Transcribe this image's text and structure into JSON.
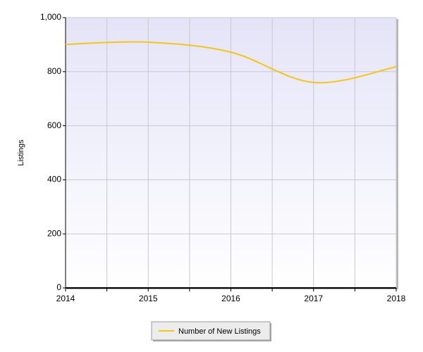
{
  "chart_data": {
    "type": "line",
    "y_label": "Listings",
    "x": [
      2014,
      2015,
      2016,
      2017,
      2018
    ],
    "series": [
      {
        "name": "Number of New Listings",
        "color": "#f5c518",
        "values": [
          901,
          909,
          872,
          760,
          818
        ]
      }
    ],
    "xlim": [
      2014,
      2018
    ],
    "xticks": [
      2014,
      2015,
      2016,
      2017,
      2018
    ],
    "ylim": [
      0,
      1000
    ],
    "yticks": [
      0,
      200,
      400,
      600,
      800,
      {
        "value": 1000,
        "label": "1,000"
      }
    ],
    "grid": true,
    "legend": "bottom"
  }
}
